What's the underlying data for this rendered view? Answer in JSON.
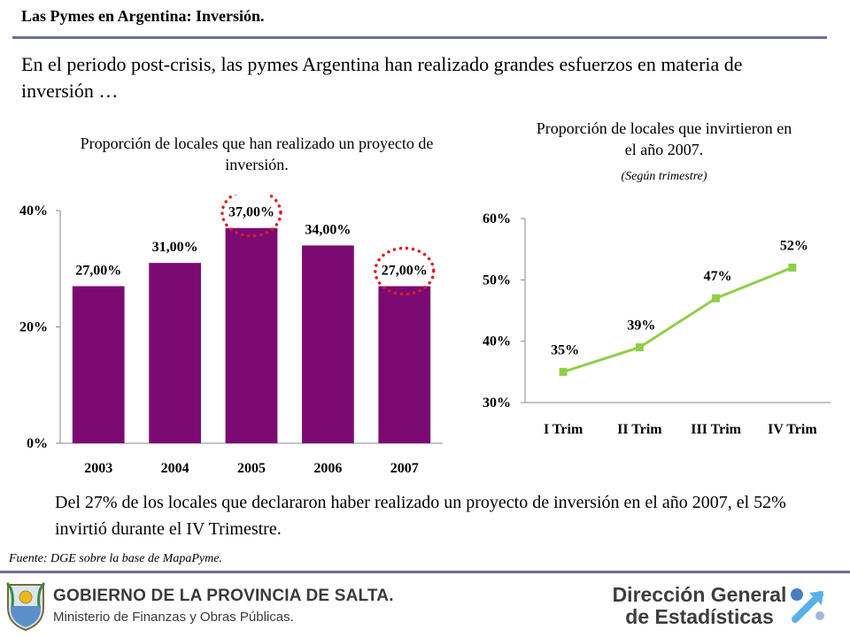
{
  "slide": {
    "title": "Las Pymes en Argentina: Inversión.",
    "intro": "En el periodo post-crisis, las pymes Argentina han realizado grandes esfuerzos en materia de inversión …",
    "conclusion": "Del 27% de los locales que declararon haber realizado un proyecto de inversión  en el año 2007, el 52% invirtió durante el IV Trimestre.",
    "source": "Fuente: DGE  sobre la base de MapaPyme."
  },
  "footer": {
    "gov_name": "GOBIERNO DE LA PROVINCIA DE SALTA.",
    "ministry": "Ministerio de Finanzas y Obras Públicas.",
    "dge_line1": "Dirección General",
    "dge_line2": "de Estadísticas"
  },
  "colors": {
    "bar": "#7b0b73",
    "line": "#8fcf4a",
    "rule": "#6b6e9a",
    "highlight": "#e11b1b"
  },
  "chart_data": [
    {
      "type": "bar",
      "title": "Proporción de locales que han realizado un proyecto de inversión.",
      "categories": [
        "2003",
        "2004",
        "2005",
        "2006",
        "2007"
      ],
      "values": [
        27,
        31,
        37,
        34,
        27
      ],
      "labels": [
        "27,00%",
        "31,00%",
        "37,00%",
        "34,00%",
        "27,00%"
      ],
      "yticks": [
        "0%",
        "20%",
        "40%"
      ],
      "ylim": [
        0,
        40
      ],
      "highlighted": [
        "2005",
        "2007"
      ]
    },
    {
      "type": "line",
      "title": "Proporción de locales que invirtieron en el año 2007.",
      "subtitle": "(Según trimestre)",
      "categories": [
        "I Trim",
        "II Trim",
        "III Trim",
        "IV Trim"
      ],
      "values": [
        35,
        39,
        47,
        52
      ],
      "labels": [
        "35%",
        "39%",
        "47%",
        "52%"
      ],
      "yticks": [
        "30%",
        "40%",
        "50%",
        "60%"
      ],
      "ylim": [
        30,
        60
      ]
    }
  ]
}
